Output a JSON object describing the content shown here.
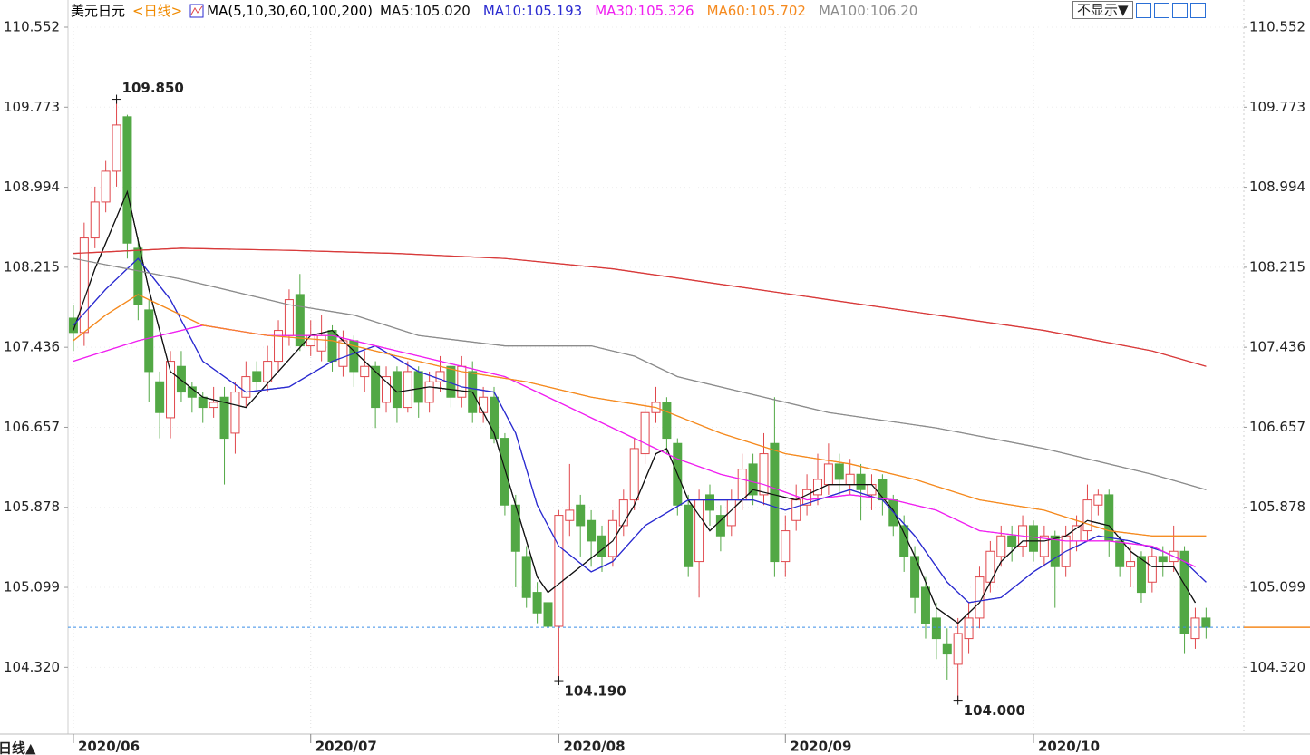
{
  "chart_data": {
    "type": "candlestick",
    "title": "美元日元",
    "period": "<日线>",
    "period_color": "#f08a00",
    "indicator": "MA(5,10,30,60,100,200)",
    "hide_button": "不显示▼",
    "period_tab": "日线▲",
    "up_color": "#e0474c",
    "down_color": "#52a845",
    "last_line_color": "#3a8ee6",
    "open": [
      107.72,
      107.58,
      108.5,
      108.85,
      109.15,
      109.68,
      108.4,
      107.8,
      107.1,
      106.75,
      107.25,
      107.05,
      106.95,
      106.85,
      106.95,
      106.6,
      106.95,
      107.2,
      107.1,
      107.3,
      107.55,
      107.95,
      107.45,
      107.4,
      107.6,
      107.25,
      107.5,
      107.15,
      107.25,
      106.9,
      107.2,
      106.85,
      107.2,
      106.9,
      107.1,
      107.25,
      106.95,
      107.2,
      106.8,
      106.95,
      106.55,
      105.9,
      105.4,
      105.05,
      104.95,
      104.72,
      105.75,
      105.9,
      105.75,
      105.6,
      105.4,
      105.7,
      105.95,
      106.4,
      106.8,
      106.9,
      106.5,
      105.9,
      105.35,
      106.0,
      105.8,
      105.7,
      105.95,
      106.3,
      106.0,
      106.5,
      105.35,
      105.75,
      105.9,
      106.0,
      106.1,
      106.3,
      106.1,
      106.2,
      106.0,
      106.15,
      105.95,
      105.7,
      105.4,
      105.1,
      104.8,
      104.55,
      104.35,
      104.6,
      104.8,
      105.15,
      105.4,
      105.6,
      105.5,
      105.7,
      105.4,
      105.6,
      105.3,
      105.55,
      105.65,
      105.9,
      106.0,
      105.55,
      105.3,
      105.4,
      105.15,
      105.4,
      105.35,
      105.45,
      104.6,
      104.8
    ],
    "high": [
      107.85,
      108.65,
      109.0,
      109.25,
      109.85,
      109.7,
      108.5,
      107.9,
      107.2,
      107.4,
      107.4,
      107.1,
      107.0,
      107.05,
      107.05,
      107.1,
      107.3,
      107.3,
      107.45,
      107.7,
      108.0,
      108.15,
      107.7,
      107.75,
      107.65,
      107.6,
      107.55,
      107.4,
      107.3,
      107.25,
      107.25,
      107.3,
      107.25,
      107.2,
      107.35,
      107.3,
      107.35,
      107.3,
      107.05,
      107.05,
      106.6,
      106.0,
      105.5,
      105.15,
      105.1,
      105.85,
      106.3,
      106.0,
      105.85,
      105.7,
      105.85,
      106.05,
      106.55,
      106.9,
      107.05,
      106.95,
      106.55,
      106.0,
      106.05,
      106.1,
      105.9,
      106.05,
      106.4,
      106.4,
      106.6,
      106.95,
      105.8,
      106.1,
      106.2,
      106.4,
      106.5,
      106.4,
      106.35,
      106.3,
      106.2,
      106.2,
      106.0,
      105.8,
      105.5,
      105.2,
      104.95,
      104.7,
      104.8,
      104.95,
      105.3,
      105.55,
      105.7,
      105.7,
      105.8,
      105.75,
      105.7,
      105.65,
      105.7,
      105.8,
      106.1,
      106.05,
      106.05,
      105.6,
      105.5,
      105.45,
      105.5,
      105.5,
      105.7,
      105.5,
      104.9,
      104.9
    ],
    "low": [
      107.4,
      107.45,
      108.4,
      108.75,
      109.0,
      108.3,
      107.7,
      106.9,
      106.55,
      106.55,
      106.9,
      106.8,
      106.7,
      106.75,
      106.1,
      106.4,
      106.85,
      107.0,
      107.0,
      107.2,
      107.45,
      107.4,
      107.35,
      107.3,
      107.2,
      107.15,
      107.05,
      107.0,
      106.65,
      106.8,
      106.7,
      106.8,
      106.75,
      106.8,
      107.0,
      106.85,
      106.85,
      106.7,
      106.7,
      106.5,
      105.8,
      105.1,
      104.9,
      104.75,
      104.6,
      104.19,
      105.6,
      105.4,
      105.3,
      105.25,
      105.3,
      105.6,
      105.85,
      106.3,
      106.7,
      106.4,
      105.8,
      105.2,
      105.0,
      105.7,
      105.45,
      105.6,
      105.85,
      105.9,
      105.9,
      105.2,
      105.2,
      105.65,
      105.8,
      105.9,
      106.0,
      106.0,
      106.0,
      105.75,
      105.85,
      105.8,
      105.6,
      105.25,
      104.85,
      104.6,
      104.4,
      104.2,
      104.0,
      104.45,
      104.7,
      105.05,
      105.3,
      105.35,
      105.4,
      105.35,
      105.3,
      104.9,
      105.2,
      105.45,
      105.55,
      105.8,
      105.4,
      105.2,
      105.1,
      104.95,
      105.05,
      105.2,
      105.25,
      104.45,
      104.5,
      104.6
    ],
    "close": [
      107.58,
      108.5,
      108.85,
      109.15,
      109.6,
      108.45,
      107.85,
      107.2,
      106.8,
      107.3,
      107.0,
      106.95,
      106.85,
      106.9,
      106.55,
      107.0,
      107.15,
      107.1,
      107.3,
      107.6,
      107.9,
      107.45,
      107.55,
      107.55,
      107.3,
      107.5,
      107.2,
      107.25,
      106.85,
      107.15,
      106.85,
      107.2,
      106.9,
      107.1,
      107.2,
      106.95,
      107.25,
      106.8,
      106.95,
      106.55,
      105.9,
      105.45,
      105.0,
      104.85,
      104.72,
      105.8,
      105.85,
      105.7,
      105.55,
      105.4,
      105.75,
      105.95,
      106.45,
      106.8,
      106.9,
      106.55,
      105.9,
      105.3,
      105.95,
      105.85,
      105.6,
      105.95,
      106.25,
      106.0,
      106.4,
      105.35,
      105.65,
      105.95,
      106.05,
      106.15,
      106.3,
      106.15,
      106.2,
      106.05,
      106.1,
      105.95,
      105.7,
      105.4,
      105.0,
      104.75,
      104.6,
      104.45,
      104.65,
      104.8,
      105.2,
      105.45,
      105.6,
      105.5,
      105.7,
      105.45,
      105.6,
      105.3,
      105.6,
      105.7,
      105.95,
      106.0,
      105.55,
      105.3,
      105.35,
      105.05,
      105.4,
      105.35,
      105.45,
      104.65,
      104.8,
      104.71
    ],
    "xlim": [
      -0.5,
      108.5
    ],
    "ylim": [
      103.67,
      110.552
    ],
    "yticks": [
      110.552,
      109.773,
      108.994,
      108.215,
      107.436,
      106.657,
      105.878,
      105.099,
      104.32
    ],
    "ytick_labels": [
      "110.552",
      "109.773",
      "108.994",
      "108.215",
      "107.436",
      "106.657",
      "105.878",
      "105.099",
      "104.320"
    ],
    "xticks": [
      {
        "value": 0,
        "label": "2020/06"
      },
      {
        "value": 22,
        "label": "2020/07"
      },
      {
        "value": 45,
        "label": "2020/08"
      },
      {
        "value": 66,
        "label": "2020/09"
      },
      {
        "value": 89,
        "label": "2020/10"
      }
    ],
    "annotations": [
      {
        "label": "109.850",
        "value": 109.85,
        "x": 4,
        "color": "#e0474c"
      },
      {
        "label": "104.190",
        "value": 104.19,
        "x": 45,
        "color": "#52a845"
      },
      {
        "label": "104.000",
        "value": 104.0,
        "x": 82,
        "color": "#52a845"
      }
    ],
    "series": [
      {
        "name": "MA5:105.020",
        "color": "#111111",
        "x": [
          0,
          2,
          5,
          7,
          9,
          12,
          16,
          19,
          22,
          24,
          27,
          30,
          33,
          37,
          39,
          41,
          43,
          44,
          47,
          50,
          52,
          54,
          55,
          57,
          59,
          61,
          63,
          65,
          67,
          70,
          74,
          76,
          78,
          80,
          82,
          84,
          86,
          88,
          90,
          92,
          94,
          96,
          98,
          100,
          102,
          104
        ],
        "values": [
          107.6,
          108.2,
          108.95,
          108.0,
          107.2,
          106.95,
          106.85,
          107.2,
          107.55,
          107.6,
          107.3,
          107.0,
          107.05,
          107.0,
          106.6,
          105.9,
          105.2,
          105.05,
          105.3,
          105.55,
          105.9,
          106.4,
          106.45,
          105.95,
          105.65,
          105.85,
          106.05,
          106.0,
          105.95,
          106.1,
          106.1,
          105.85,
          105.4,
          104.9,
          104.75,
          104.95,
          105.35,
          105.55,
          105.55,
          105.6,
          105.75,
          105.7,
          105.45,
          105.3,
          105.3,
          104.95
        ]
      },
      {
        "name": "MA10:105.193",
        "color": "#2b2bd0",
        "x": [
          0,
          3,
          6,
          9,
          12,
          16,
          20,
          24,
          28,
          32,
          36,
          39,
          41,
          43,
          45,
          48,
          50,
          53,
          57,
          60,
          63,
          66,
          69,
          72,
          75,
          78,
          81,
          83,
          86,
          89,
          92,
          95,
          98,
          101,
          103,
          105
        ],
        "values": [
          107.65,
          108.0,
          108.3,
          107.9,
          107.3,
          107.0,
          107.05,
          107.3,
          107.45,
          107.2,
          107.05,
          107.0,
          106.6,
          105.9,
          105.5,
          105.25,
          105.35,
          105.7,
          105.95,
          105.95,
          105.95,
          105.85,
          105.95,
          106.05,
          105.95,
          105.6,
          105.15,
          104.95,
          105.0,
          105.25,
          105.45,
          105.6,
          105.55,
          105.45,
          105.35,
          105.15
        ]
      },
      {
        "name": "MA30:105.326",
        "color": "#f020f0",
        "x": [
          0,
          6,
          12,
          18,
          24,
          30,
          36,
          40,
          44,
          48,
          52,
          56,
          60,
          64,
          68,
          72,
          76,
          80,
          84,
          88,
          92,
          96,
          100,
          104
        ],
        "values": [
          107.3,
          107.5,
          107.65,
          107.55,
          107.55,
          107.4,
          107.25,
          107.15,
          106.95,
          106.75,
          106.55,
          106.35,
          106.2,
          106.1,
          105.95,
          106.0,
          105.95,
          105.85,
          105.65,
          105.6,
          105.55,
          105.55,
          105.5,
          105.3
        ]
      },
      {
        "name": "MA60:105.702",
        "color": "#f58a1f",
        "x": [
          0,
          3,
          6,
          9,
          12,
          18,
          24,
          30,
          36,
          42,
          48,
          54,
          60,
          66,
          72,
          78,
          84,
          90,
          96,
          100,
          105
        ],
        "values": [
          107.5,
          107.75,
          107.95,
          107.8,
          107.65,
          107.55,
          107.5,
          107.35,
          107.2,
          107.1,
          106.95,
          106.85,
          106.6,
          106.4,
          106.3,
          106.15,
          105.95,
          105.85,
          105.65,
          105.6,
          105.6
        ]
      },
      {
        "name": "MA100:106.20",
        "color": "#8c8c8c",
        "x": [
          0,
          10,
          20,
          26,
          32,
          40,
          48,
          52,
          56,
          62,
          70,
          80,
          90,
          100,
          105
        ],
        "values": [
          108.3,
          108.1,
          107.85,
          107.75,
          107.55,
          107.45,
          107.45,
          107.35,
          107.15,
          107.0,
          106.8,
          106.65,
          106.45,
          106.2,
          106.05
        ]
      },
      {
        "color": "#d83a3a",
        "x": [
          0,
          10,
          20,
          30,
          40,
          50,
          60,
          70,
          80,
          90,
          100,
          105
        ],
        "values": [
          108.35,
          108.4,
          108.38,
          108.35,
          108.3,
          108.2,
          108.05,
          107.9,
          107.75,
          107.6,
          107.4,
          107.25
        ]
      }
    ]
  }
}
